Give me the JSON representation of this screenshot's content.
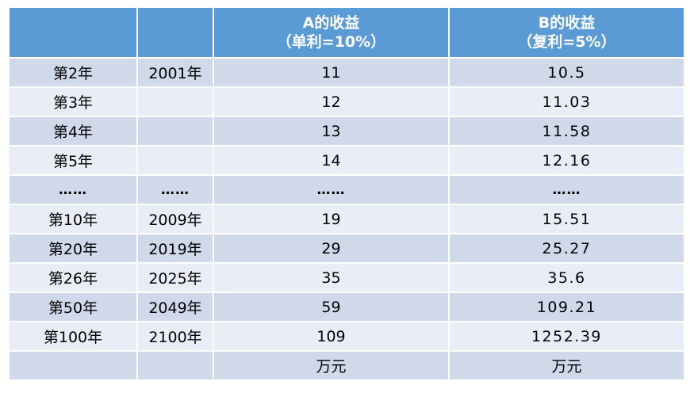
{
  "header": {
    "col1": "",
    "col2": "",
    "col3_line1": "A的收益",
    "col3_line2": "（单利=10%）",
    "col4_line1": "B的收益",
    "col4_line2": "（复利=5%）"
  },
  "rows": [
    {
      "period": "第2年",
      "year": "2001年",
      "a": "11",
      "b": "10.5"
    },
    {
      "period": "第3年",
      "year": "",
      "a": "12",
      "b": "11.03"
    },
    {
      "period": "第4年",
      "year": "",
      "a": "13",
      "b": "11.58"
    },
    {
      "period": "第5年",
      "year": "",
      "a": "14",
      "b": "12.16"
    },
    {
      "period": "……",
      "year": "……",
      "a": "……",
      "b": "……"
    },
    {
      "period": "第10年",
      "year": "2009年",
      "a": "19",
      "b": "15.51"
    },
    {
      "period": "第20年",
      "year": "2019年",
      "a": "29",
      "b": "25.27"
    },
    {
      "period": "第26年",
      "year": "2025年",
      "a": "35",
      "b": "35.6"
    },
    {
      "period": "第50年",
      "year": "2049年",
      "a": "59",
      "b": "109.21"
    },
    {
      "period": "第100年",
      "year": "2100年",
      "a": "109",
      "b": "1252.39"
    },
    {
      "period": "",
      "year": "",
      "a": "万元",
      "b": "万元"
    }
  ],
  "colors": {
    "header_bg": "#5b9bd5",
    "row_odd_bg": "#cfd9ea",
    "row_even_bg": "#e9eef6"
  }
}
